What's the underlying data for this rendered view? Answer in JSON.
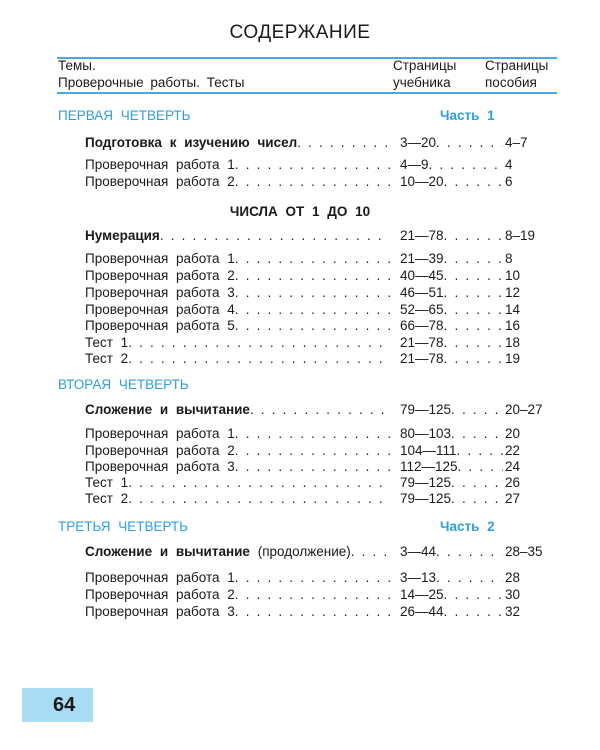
{
  "title": "СОДЕРЖАНИЕ",
  "header": {
    "col_topics_line1": "Темы.",
    "col_topics_line2": "Проверочные работы. Тесты",
    "col_textbook_line1": "Страницы",
    "col_textbook_line2": "учебника",
    "col_manual_line1": "Страницы",
    "col_manual_line2": "пособия"
  },
  "colors": {
    "accent": "#2e9ee0",
    "rule": "#4aa8e0",
    "page_badge": "#a8dcf5"
  },
  "items": [
    {
      "type": "section",
      "label": "ПЕРВАЯ ЧЕТВЕРТЬ",
      "part": "Часть 1"
    },
    {
      "type": "topic",
      "label": "Подготовка к изучению чисел",
      "textbook": "3—20",
      "manual": "4–7"
    },
    {
      "type": "entry",
      "label": "Проверочная работа 1",
      "textbook": "4—9",
      "manual": "4"
    },
    {
      "type": "entry",
      "label": "Проверочная работа 2",
      "textbook": "10—20",
      "manual": "6"
    },
    {
      "type": "heading",
      "label": "ЧИСЛА ОТ 1 ДО 10"
    },
    {
      "type": "topic",
      "label": "Нумерация",
      "textbook": "21—78",
      "manual": "8–19"
    },
    {
      "type": "entry",
      "label": "Проверочная работа 1",
      "textbook": "21—39",
      "manual": "8"
    },
    {
      "type": "entry",
      "label": "Проверочная работа 2",
      "textbook": "40—45",
      "manual": "10"
    },
    {
      "type": "entry",
      "label": "Проверочная работа 3",
      "textbook": "46—51",
      "manual": "12"
    },
    {
      "type": "entry",
      "label": "Проверочная работа 4",
      "textbook": "52—65",
      "manual": "14"
    },
    {
      "type": "entry",
      "label": "Проверочная работа 5",
      "textbook": "66—78",
      "manual": "16"
    },
    {
      "type": "entry",
      "label": "Тест 1",
      "textbook": "21—78",
      "manual": "18"
    },
    {
      "type": "entry",
      "label": "Тест 2",
      "textbook": "21—78",
      "manual": "19"
    },
    {
      "type": "section",
      "label": "ВТОРАЯ ЧЕТВЕРТЬ",
      "part": ""
    },
    {
      "type": "topic",
      "label": "Сложение и вычитание",
      "textbook": "79—125",
      "manual": "20–27"
    },
    {
      "type": "entry",
      "label": "Проверочная работа 1",
      "textbook": "80—103",
      "manual": "20"
    },
    {
      "type": "entry",
      "label": "Проверочная работа 2",
      "textbook": "104—111",
      "manual": "22"
    },
    {
      "type": "entry",
      "label": "Проверочная работа 3",
      "textbook": "112—125",
      "manual": "24"
    },
    {
      "type": "entry",
      "label": "Тест 1",
      "textbook": "79—125",
      "manual": "26"
    },
    {
      "type": "entry",
      "label": "Тест 2",
      "textbook": "79—125",
      "manual": "27"
    },
    {
      "type": "section",
      "label": "ТРЕТЬЯ ЧЕТВЕРТЬ",
      "part": "Часть 2"
    },
    {
      "type": "topic",
      "label": "Сложение и вычитание",
      "note": "(продолжение)",
      "textbook": "3—44",
      "manual": "28–35"
    },
    {
      "type": "entry",
      "label": "Проверочная работа 1",
      "textbook": "3—13",
      "manual": "28"
    },
    {
      "type": "entry",
      "label": "Проверочная работа 2",
      "textbook": "14—25",
      "manual": "30"
    },
    {
      "type": "entry",
      "label": "Проверочная работа 3",
      "textbook": "26—44",
      "manual": "32"
    }
  ],
  "page_number": "64"
}
